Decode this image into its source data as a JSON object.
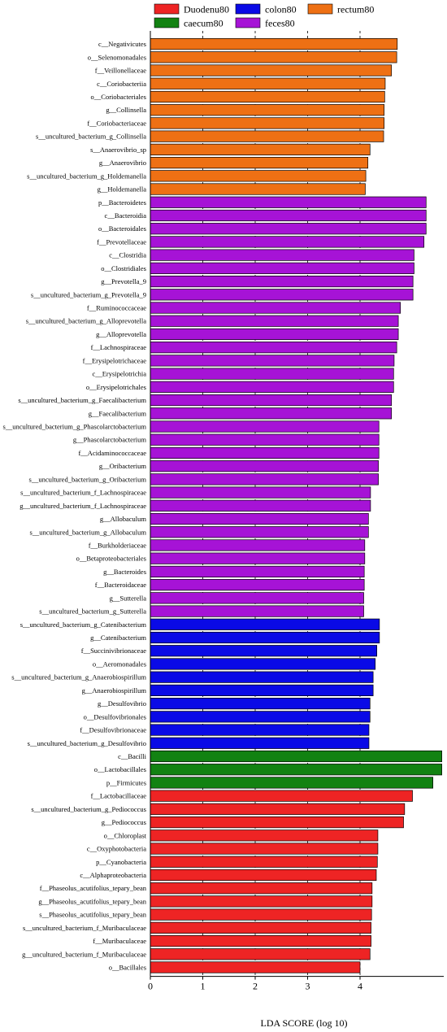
{
  "chart_data": {
    "type": "bar",
    "orientation": "horizontal",
    "xlabel": "LDA SCORE (log 10)",
    "xticks": [
      0,
      1,
      2,
      3,
      4
    ],
    "xlim": [
      0,
      5.6
    ],
    "grid": "vertical dashed lines at x = 1, 2, 3, 4",
    "legend_position": "top",
    "legend": [
      {
        "name": "Duodenu80",
        "color": "#ee2424"
      },
      {
        "name": "colon80",
        "color": "#0a0ae6"
      },
      {
        "name": "rectum80",
        "color": "#ee7014"
      },
      {
        "name": "caecum80",
        "color": "#128212"
      },
      {
        "name": "feces80",
        "color": "#a613d6"
      }
    ],
    "bars": [
      {
        "label": "c__Negativicutes",
        "value": 4.71,
        "group": "rectum80"
      },
      {
        "label": "o__Selenomonadales",
        "value": 4.7,
        "group": "rectum80"
      },
      {
        "label": "f__Veillonellaceae",
        "value": 4.6,
        "group": "rectum80"
      },
      {
        "label": "c__Coriobacteriia",
        "value": 4.48,
        "group": "rectum80"
      },
      {
        "label": "o__Coriobacteriales",
        "value": 4.47,
        "group": "rectum80"
      },
      {
        "label": "g__Collinsella",
        "value": 4.46,
        "group": "rectum80"
      },
      {
        "label": "f__Coriobacteriaceae",
        "value": 4.46,
        "group": "rectum80"
      },
      {
        "label": "s__uncultured_bacterium_g_Collinsella",
        "value": 4.45,
        "group": "rectum80"
      },
      {
        "label": "s__Anaerovibrio_sp",
        "value": 4.19,
        "group": "rectum80"
      },
      {
        "label": "g__Anaerovibrio",
        "value": 4.15,
        "group": "rectum80"
      },
      {
        "label": "s__uncultured_bacterium_g_Holdemanella",
        "value": 4.11,
        "group": "rectum80"
      },
      {
        "label": "g__Holdemanella",
        "value": 4.1,
        "group": "rectum80"
      },
      {
        "label": "p__Bacteroidetes",
        "value": 5.26,
        "group": "feces80"
      },
      {
        "label": "c__Bacteroidia",
        "value": 5.26,
        "group": "feces80"
      },
      {
        "label": "o__Bacteroidales",
        "value": 5.26,
        "group": "feces80"
      },
      {
        "label": "f__Prevotellaceae",
        "value": 5.22,
        "group": "feces80"
      },
      {
        "label": "c__Clostridia",
        "value": 5.03,
        "group": "feces80"
      },
      {
        "label": "o__Clostridiales",
        "value": 5.03,
        "group": "feces80"
      },
      {
        "label": "g__Prevotella_9",
        "value": 5.01,
        "group": "feces80"
      },
      {
        "label": "s__uncultured_bacterium_g_Prevotella_9",
        "value": 5.01,
        "group": "feces80"
      },
      {
        "label": "f__Ruminococcaceae",
        "value": 4.77,
        "group": "feces80"
      },
      {
        "label": "s__uncultured_bacterium_g_Alloprevotella",
        "value": 4.73,
        "group": "feces80"
      },
      {
        "label": "g__Alloprevotella",
        "value": 4.73,
        "group": "feces80"
      },
      {
        "label": "f__Lachnospiraceae",
        "value": 4.7,
        "group": "feces80"
      },
      {
        "label": "f__Erysipelotrichaceae",
        "value": 4.65,
        "group": "feces80"
      },
      {
        "label": "c__Erysipelotrichia",
        "value": 4.64,
        "group": "feces80"
      },
      {
        "label": "o__Erysipelotrichales",
        "value": 4.64,
        "group": "feces80"
      },
      {
        "label": "s__uncultured_bacterium_g_Faecalibacterium",
        "value": 4.6,
        "group": "feces80"
      },
      {
        "label": "g__Faecalibacterium",
        "value": 4.6,
        "group": "feces80"
      },
      {
        "label": "s__uncultured_bacterium_g_Phascolarctobacterium",
        "value": 4.36,
        "group": "feces80"
      },
      {
        "label": "g__Phascolarctobacterium",
        "value": 4.36,
        "group": "feces80"
      },
      {
        "label": "f__Acidaminococcaceae",
        "value": 4.36,
        "group": "feces80"
      },
      {
        "label": "g__Oribacterium",
        "value": 4.35,
        "group": "feces80"
      },
      {
        "label": "s__uncultured_bacterium_g_Oribacterium",
        "value": 4.35,
        "group": "feces80"
      },
      {
        "label": "s__uncultured_bacterium_f_Lachnospiraceae",
        "value": 4.2,
        "group": "feces80"
      },
      {
        "label": "g__uncultured_bacterium_f_Lachnospiraceae",
        "value": 4.2,
        "group": "feces80"
      },
      {
        "label": "g__Allobaculum",
        "value": 4.16,
        "group": "feces80"
      },
      {
        "label": "s__uncultured_bacterium_g_Allobaculum",
        "value": 4.16,
        "group": "feces80"
      },
      {
        "label": "f__Burkholderiaceae",
        "value": 4.09,
        "group": "feces80"
      },
      {
        "label": "o__Betaproteobacteriales",
        "value": 4.09,
        "group": "feces80"
      },
      {
        "label": "g__Bacteroides",
        "value": 4.08,
        "group": "feces80"
      },
      {
        "label": "f__Bacteroidaceae",
        "value": 4.08,
        "group": "feces80"
      },
      {
        "label": "g__Sutterella",
        "value": 4.07,
        "group": "feces80"
      },
      {
        "label": "s__uncultured_bacterium_g_Sutterella",
        "value": 4.07,
        "group": "feces80"
      },
      {
        "label": "s__uncultured_bacterium_g_Catenibacterium",
        "value": 4.37,
        "group": "colon80"
      },
      {
        "label": "g__Catenibacterium",
        "value": 4.37,
        "group": "colon80"
      },
      {
        "label": "f__Succinivibrionaceae",
        "value": 4.32,
        "group": "colon80"
      },
      {
        "label": "o__Aeromonadales",
        "value": 4.29,
        "group": "colon80"
      },
      {
        "label": "s__uncultured_bacterium_g_Anaerobiospirillum",
        "value": 4.25,
        "group": "colon80"
      },
      {
        "label": "g__Anaerobiospirillum",
        "value": 4.25,
        "group": "colon80"
      },
      {
        "label": "g__Desulfovibrio",
        "value": 4.19,
        "group": "colon80"
      },
      {
        "label": "o__Desulfovibrionales",
        "value": 4.19,
        "group": "colon80"
      },
      {
        "label": "f__Desulfovibrionaceae",
        "value": 4.17,
        "group": "colon80"
      },
      {
        "label": "s__uncultured_bacterium_g_Desulfovibrio",
        "value": 4.17,
        "group": "colon80"
      },
      {
        "label": "c__Bacilli",
        "value": 5.56,
        "group": "caecum80"
      },
      {
        "label": "o__Lactobacillales",
        "value": 5.56,
        "group": "caecum80"
      },
      {
        "label": "p__Firmicutes",
        "value": 5.39,
        "group": "caecum80"
      },
      {
        "label": "f__Lactobacillaceae",
        "value": 5.0,
        "group": "Duodenu80"
      },
      {
        "label": "s__uncultured_bacterium_g_Pediococcus",
        "value": 4.85,
        "group": "Duodenu80"
      },
      {
        "label": "g__Pediococcus",
        "value": 4.83,
        "group": "Duodenu80"
      },
      {
        "label": "o__Chloroplast",
        "value": 4.34,
        "group": "Duodenu80"
      },
      {
        "label": "c__Oxyphotobacteria",
        "value": 4.34,
        "group": "Duodenu80"
      },
      {
        "label": "p__Cyanobacteria",
        "value": 4.33,
        "group": "Duodenu80"
      },
      {
        "label": "c__Alphaproteobacteria",
        "value": 4.31,
        "group": "Duodenu80"
      },
      {
        "label": "f__Phaseolus_acutifolius_tepary_bean",
        "value": 4.23,
        "group": "Duodenu80"
      },
      {
        "label": "g__Phaseolus_acutifolius_tepary_bean",
        "value": 4.23,
        "group": "Duodenu80"
      },
      {
        "label": "s__Phaseolus_acutifolius_tepary_bean",
        "value": 4.22,
        "group": "Duodenu80"
      },
      {
        "label": "s__uncultured_bacterium_f_Muribaculaceae",
        "value": 4.21,
        "group": "Duodenu80"
      },
      {
        "label": "f__Muribaculaceae",
        "value": 4.21,
        "group": "Duodenu80"
      },
      {
        "label": "g__uncultured_bacterium_f_Muribaculaceae",
        "value": 4.19,
        "group": "Duodenu80"
      },
      {
        "label": "o__Bacillales",
        "value": 4.0,
        "group": "Duodenu80"
      }
    ]
  }
}
